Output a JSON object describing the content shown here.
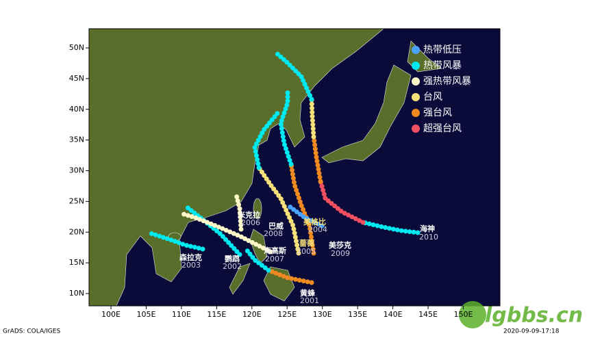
{
  "map": {
    "lon_ticks": [
      {
        "value": 100,
        "label": "100E"
      },
      {
        "value": 105,
        "label": "105E"
      },
      {
        "value": 110,
        "label": "110E"
      },
      {
        "value": 115,
        "label": "115E"
      },
      {
        "value": 120,
        "label": "120E"
      },
      {
        "value": 125,
        "label": "125E"
      },
      {
        "value": 130,
        "label": "130E"
      },
      {
        "value": 135,
        "label": "135E"
      },
      {
        "value": 140,
        "label": "140E"
      },
      {
        "value": 145,
        "label": "145E"
      },
      {
        "value": 150,
        "label": "150E"
      }
    ],
    "lat_ticks": [
      {
        "value": 10,
        "label": "10N"
      },
      {
        "value": 15,
        "label": "15N"
      },
      {
        "value": 20,
        "label": "20N"
      },
      {
        "value": 25,
        "label": "25N"
      },
      {
        "value": 30,
        "label": "30N"
      },
      {
        "value": 35,
        "label": "35N"
      },
      {
        "value": 40,
        "label": "40N"
      },
      {
        "value": 45,
        "label": "45N"
      },
      {
        "value": 50,
        "label": "50N"
      }
    ]
  },
  "legend": [
    {
      "label": "热带低压",
      "color": "#4aa3ff"
    },
    {
      "label": "热带风暴",
      "color": "#00e8f0"
    },
    {
      "label": "强热带风暴",
      "color": "#fff8c8"
    },
    {
      "label": "台风",
      "color": "#f5e07a"
    },
    {
      "label": "强台风",
      "color": "#f08a20"
    },
    {
      "label": "超强台风",
      "color": "#f05060"
    }
  ],
  "storms": [
    {
      "name": "海神",
      "code": "2010"
    },
    {
      "name": "美莎克",
      "code": "2009"
    },
    {
      "name": "黄蜂",
      "code": "2001"
    },
    {
      "name": "森拉克",
      "code": "2003"
    },
    {
      "name": "鹦鹉",
      "code": "2002"
    },
    {
      "name": "海高斯",
      "code": "2007"
    },
    {
      "name": "米克拉",
      "code": "2006"
    },
    {
      "name": "巴威",
      "code": "2008"
    },
    {
      "name": "美格比",
      "code": "2004"
    },
    {
      "name": "蔷薇",
      "code": "2005"
    }
  ],
  "footer": {
    "left": "GrADS: COLA/IGES",
    "right": "2020-09-09-17:18"
  },
  "watermark": "lgbbs.cn"
}
